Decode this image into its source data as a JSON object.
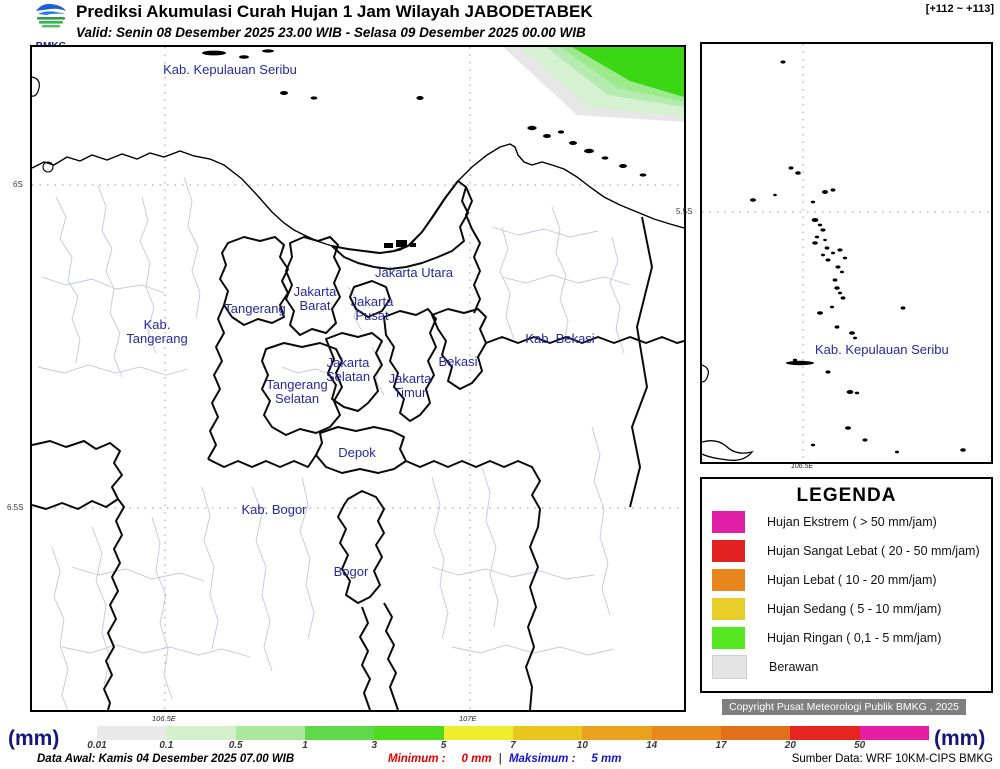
{
  "header": {
    "logo_text": "BMKG",
    "title": "Prediksi Akumulasi Curah Hujan 1 Jam Wilayah JABODETABEK",
    "valid_line": "Valid: Senin 08 Desember 2025 23.00 WIB - Selasa 09 Desember 2025 00.00 WIB",
    "time_range": "[+112 ~ +113]"
  },
  "main_map": {
    "y_ticks": {
      "t6s": "6S",
      "t65s": "6.5S"
    },
    "x_ticks": {
      "t1065e": "106.5E",
      "t107e": "107E"
    },
    "labels": {
      "kab_kepulauan_seribu": "Kab. Kepulauan Seribu",
      "jakarta_utara": "Jakarta Utara",
      "jakarta_barat_l1": "Jakarta",
      "jakarta_barat_l2": "Barat",
      "jakarta_pusat_l1": "Jakarta",
      "jakarta_pusat_l2": "Pusat",
      "tangerang": "Tangerang",
      "kab_tangerang_l1": "Kab.",
      "kab_tangerang_l2": "Tangerang",
      "kab_bekasi": "Kab. Bekasi",
      "bekasi": "Bekasi",
      "jakarta_selatan_l1": "Jakarta",
      "jakarta_selatan_l2": "Selatan",
      "jakarta_timur_l1": "Jakarta",
      "jakarta_timur_l2": "Timur",
      "tangerang_selatan_l1": "Tangerang",
      "tangerang_selatan_l2": "Selatan",
      "depok": "Depok",
      "kab_bogor": "Kab. Bogor",
      "bogor": "Bogor"
    }
  },
  "inset_map": {
    "label": "Kab. Kepulauan Seribu",
    "y_tick": "5.5S",
    "x_tick": "106.5E"
  },
  "legend": {
    "title": "LEGENDA",
    "items": [
      {
        "label": "Hujan Ekstrem ( > 50 mm/jam)",
        "color": "#e01ea6"
      },
      {
        "label": "Hujan Sangat Lebat ( 20 - 50 mm/jam)",
        "color": "#e32222"
      },
      {
        "label": "Hujan Lebat ( 10 - 20 mm/jam)",
        "color": "#e8861e"
      },
      {
        "label": "Hujan Sedang ( 5 - 10 mm/jam)",
        "color": "#e8cc28"
      },
      {
        "label": "Hujan Ringan ( 0,1 - 5 mm/jam)",
        "color": "#55e822"
      },
      {
        "label": "Berawan",
        "color": "#e4e4e4"
      }
    ]
  },
  "copyright": "Copyright Pusat Meteorologi Publik BMKG , 2025",
  "colorbar": {
    "unit_label_left": "(mm)",
    "unit_label_right": "(mm)",
    "ticks": [
      "0.01",
      "0.1",
      "0.5",
      "1",
      "3",
      "5",
      "7",
      "10",
      "14",
      "17",
      "20",
      "50"
    ],
    "colors": [
      "#e9e9e9",
      "#d4f0cc",
      "#abe89e",
      "#5fd84a",
      "#4edc1e",
      "#eeee2e",
      "#e8c61e",
      "#e8a21e",
      "#e8891a",
      "#e0701c",
      "#e62420",
      "#e61ca4"
    ]
  },
  "footer": {
    "data_awal": "Data Awal: Kamis 04 Desember 2025 07.00 WIB",
    "minimum_label": "Minimum :",
    "minimum_value": "0 mm",
    "separator": "|",
    "maksimum_label": "Maksimum :",
    "maksimum_value": "5 mm",
    "sumber": "Sumber Data: WRF 10KM-CIPS BMKG"
  }
}
